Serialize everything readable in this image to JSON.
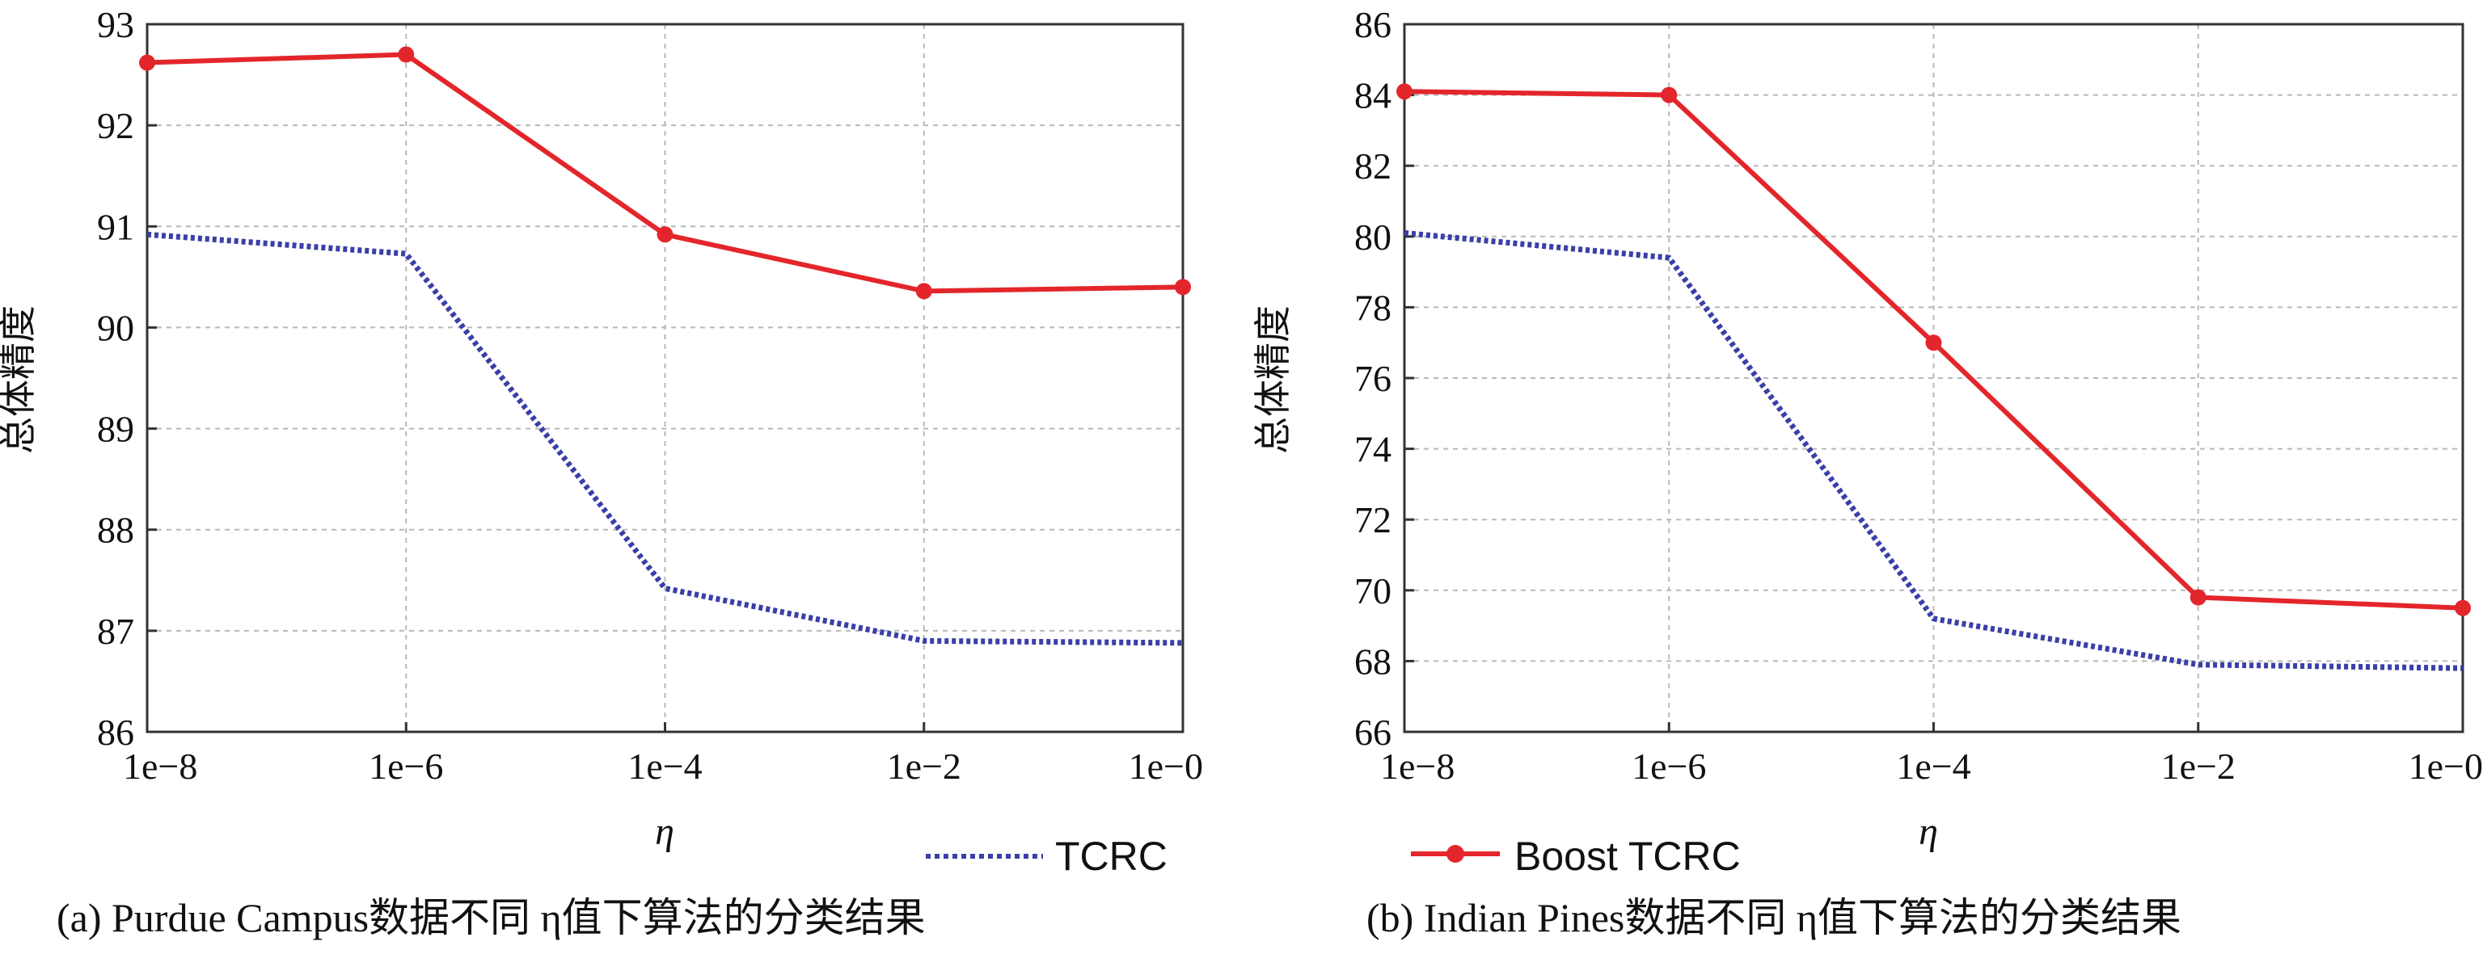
{
  "colors": {
    "tcrc": "#3a3fa8",
    "boost": "#e3262b",
    "grid": "#b8b8b8",
    "frame": "#333333"
  },
  "legend": {
    "tcrc": "TCRC",
    "boost": "Boost TCRC"
  },
  "captions": {
    "a": "(a) Purdue Campus数据不同 η值下算法的分类结果",
    "b": "(b) Indian Pines数据不同 η值下算法的分类结果"
  },
  "chart_data": [
    {
      "type": "line",
      "xlabel": "η",
      "ylabel": "总体精度",
      "categories": [
        "1e−8",
        "1e−6",
        "1e−4",
        "1e−2",
        "1e−0"
      ],
      "ylim": [
        86,
        93
      ],
      "yticks": [
        "86",
        "87",
        "88",
        "89",
        "90",
        "91",
        "92",
        "93"
      ],
      "grid": true,
      "legend": [
        "TCRC"
      ],
      "series": [
        {
          "name": "TCRC",
          "style": "dotted",
          "values": [
            90.92,
            90.73,
            87.42,
            86.9,
            86.88
          ]
        },
        {
          "name": "Boost TCRC",
          "style": "solid-marker",
          "values": [
            92.62,
            92.7,
            90.92,
            90.36,
            90.4
          ]
        }
      ]
    },
    {
      "type": "line",
      "xlabel": "η",
      "ylabel": "总体精度",
      "categories": [
        "1e−8",
        "1e−6",
        "1e−4",
        "1e−2",
        "1e−0"
      ],
      "ylim": [
        66,
        86
      ],
      "yticks": [
        "66",
        "68",
        "70",
        "72",
        "74",
        "76",
        "78",
        "80",
        "82",
        "84",
        "86"
      ],
      "grid": true,
      "legend": [
        "Boost TCRC"
      ],
      "series": [
        {
          "name": "TCRC",
          "style": "dotted",
          "values": [
            80.1,
            79.4,
            69.2,
            67.9,
            67.8
          ]
        },
        {
          "name": "Boost TCRC",
          "style": "solid-marker",
          "values": [
            84.1,
            84.0,
            77.0,
            69.8,
            69.5
          ]
        }
      ]
    }
  ]
}
